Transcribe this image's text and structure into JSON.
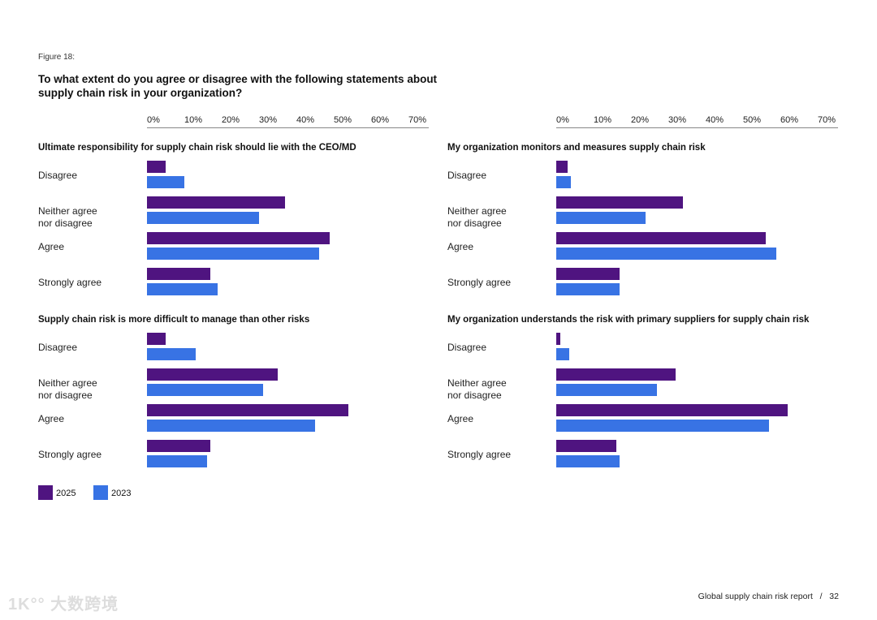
{
  "figure_label": "Figure 18:",
  "title": "To what extent do you agree or disagree with the following statements about supply chain risk in your organization?",
  "footer": "Global supply chain risk report   /   32",
  "watermark": "大数跨境",
  "colors": {
    "2025": "#4f1480",
    "2023": "#3873e4"
  },
  "chart_data": {
    "type": "bar",
    "orientation": "horizontal",
    "xlim": [
      0,
      70
    ],
    "ticks": [
      "0%",
      "10%",
      "20%",
      "30%",
      "40%",
      "50%",
      "60%",
      "70%"
    ],
    "categories": [
      "Disagree",
      "Neither agree\nnor disagree",
      "Agree",
      "Strongly agree"
    ],
    "legend": [
      {
        "name": "2025"
      },
      {
        "name": "2023"
      }
    ],
    "legend_placement": "bottom-left",
    "panels": [
      {
        "title": "Ultimate responsibility for supply chain risk should lie with the CEO/MD",
        "series": [
          {
            "name": "2025",
            "values": [
              5,
              37,
              49,
              17
            ]
          },
          {
            "name": "2023",
            "values": [
              10,
              30,
              46,
              19
            ]
          }
        ]
      },
      {
        "title": "My organization monitors and measures supply chain risk",
        "series": [
          {
            "name": "2025",
            "values": [
              3,
              34,
              56,
              17
            ]
          },
          {
            "name": "2023",
            "values": [
              4,
              24,
              59,
              17
            ]
          }
        ]
      },
      {
        "title": "Supply chain risk is more difficult to manage than other risks",
        "series": [
          {
            "name": "2025",
            "values": [
              5,
              35,
              54,
              17
            ]
          },
          {
            "name": "2023",
            "values": [
              13,
              31,
              45,
              16
            ]
          }
        ]
      },
      {
        "title": "My organization understands the risk with primary suppliers for supply chain risk",
        "series": [
          {
            "name": "2025",
            "values": [
              1,
              32,
              62,
              16
            ]
          },
          {
            "name": "2023",
            "values": [
              3.5,
              27,
              57,
              17
            ]
          }
        ]
      }
    ]
  }
}
